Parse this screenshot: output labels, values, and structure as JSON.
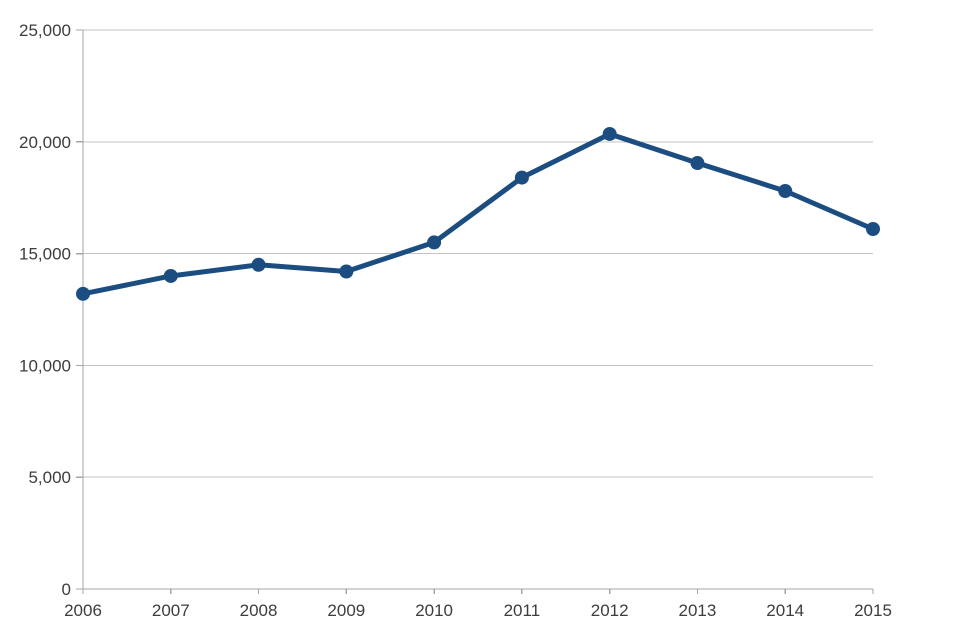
{
  "chart_data": {
    "type": "line",
    "title": "",
    "xlabel": "",
    "ylabel": "",
    "categories": [
      "2006",
      "2007",
      "2008",
      "2009",
      "2010",
      "2011",
      "2012",
      "2013",
      "2014",
      "2015"
    ],
    "values": [
      13200,
      14000,
      14500,
      14200,
      15500,
      18400,
      20350,
      19050,
      17800,
      16100
    ],
    "ylim": [
      0,
      25000
    ],
    "ytick_interval": 5000,
    "ytick_labels": [
      "0",
      "5,000",
      "10,000",
      "15,000",
      "20,000",
      "25,000"
    ],
    "grid": true,
    "legend": false,
    "marker": "circle"
  },
  "colors": {
    "series": "#1c4d80",
    "grid": "#c3c3c3",
    "axis": "#a6a6a6",
    "label": "#3d3d3d",
    "background": "#ffffff"
  }
}
